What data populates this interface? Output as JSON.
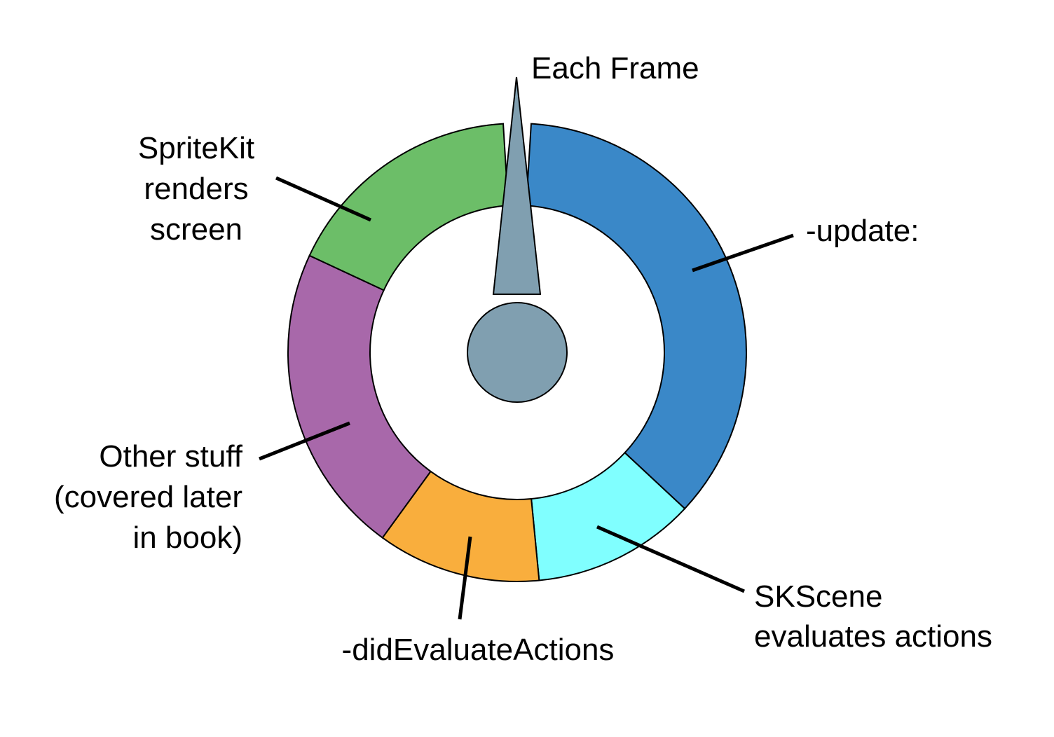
{
  "diagram": {
    "marker_label": "Each Frame",
    "segments": [
      {
        "key": "update",
        "label_lines": [
          "-update:"
        ],
        "color": "#3a88c8"
      },
      {
        "key": "evaluate",
        "label_lines": [
          "SKScene",
          "evaluates actions"
        ],
        "color": "#80ffff"
      },
      {
        "key": "did_evaluate",
        "label_lines": [
          "-didEvaluateActions"
        ],
        "color": "#f9ae3d"
      },
      {
        "key": "other",
        "label_lines": [
          "Other stuff",
          "(covered later",
          "in book)"
        ],
        "color": "#a868aa"
      },
      {
        "key": "render",
        "label_lines": [
          "SpriteKit",
          "renders",
          "screen"
        ],
        "color": "#6cbe68"
      }
    ],
    "hand_color": "#809fb0"
  }
}
